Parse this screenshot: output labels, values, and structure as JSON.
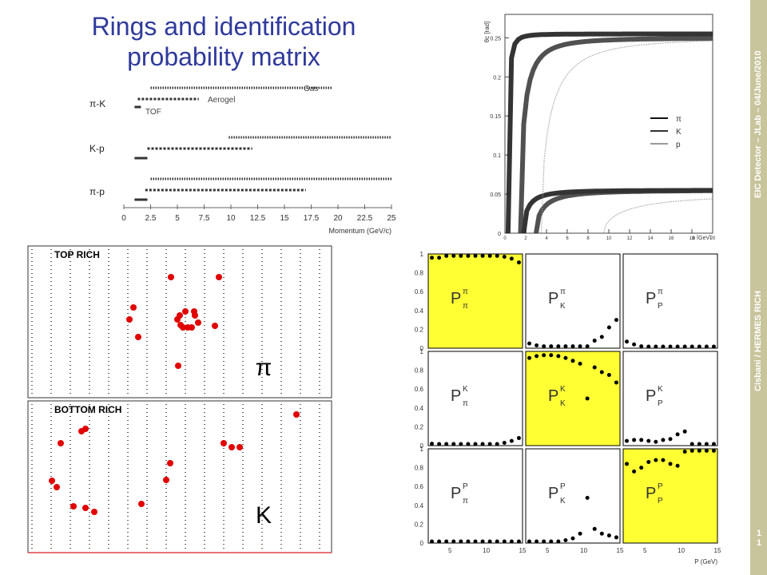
{
  "slide": {
    "title_line1": "Rings and identification",
    "title_line2": "probability matrix",
    "sidebar_top": "EIC Detector – JLab – 04/June/2010",
    "sidebar_bottom": "Cisbani / HERMES RICH",
    "page_number": "1\n1"
  },
  "chart_data": [
    {
      "type": "table",
      "name": "momentum-coverage",
      "xlabel": "Momentum (GeV/c)",
      "x_ticks": [
        "0",
        "2.5",
        "5",
        "7.5",
        "10",
        "12.5",
        "15",
        "17.5",
        "20",
        "22.5",
        "25"
      ],
      "xlim": [
        0,
        25
      ],
      "groups": [
        {
          "label": "π-K",
          "ranges": [
            {
              "name": "Gas",
              "from": 2.5,
              "to": 19.5,
              "style": "dotted"
            },
            {
              "name": "Aerogel",
              "from": 1.3,
              "to": 7.0,
              "style": "dashed"
            },
            {
              "name": "TOF",
              "from": 1.0,
              "to": 1.6,
              "style": "solid"
            }
          ]
        },
        {
          "label": "K-p",
          "ranges": [
            {
              "name": "Gas",
              "from": 9.8,
              "to": 25.0,
              "style": "dotted"
            },
            {
              "name": "Aerogel",
              "from": 2.2,
              "to": 12.0,
              "style": "dashed"
            },
            {
              "name": "TOF",
              "from": 1.0,
              "to": 2.2,
              "style": "solid"
            }
          ]
        },
        {
          "label": "π-p",
          "ranges": [
            {
              "name": "Gas",
              "from": 2.5,
              "to": 25.0,
              "style": "dotted"
            },
            {
              "name": "Aerogel",
              "from": 2.0,
              "to": 17.0,
              "style": "dashed"
            },
            {
              "name": "TOF",
              "from": 1.0,
              "to": 2.2,
              "style": "solid"
            }
          ]
        }
      ],
      "labels": {
        "gas": "Gas",
        "aerogel": "Aerogel",
        "tof": "TOF"
      }
    },
    {
      "type": "scatter",
      "name": "cherenkov-angle",
      "ylabel": "θc [rad]",
      "xlabel": "p [GeV]",
      "xlim": [
        0,
        20
      ],
      "ylim": [
        0,
        0.28
      ],
      "x_ticks": [
        "0",
        "2",
        "4",
        "6",
        "8",
        "10",
        "12",
        "14",
        "16",
        "18",
        "20"
      ],
      "y_ticks": [
        "0",
        "0.05",
        "0.1",
        "0.15",
        "0.2",
        "0.25"
      ],
      "series": [
        {
          "name": "π",
          "band": "gas",
          "threshold": 1.8,
          "saturation": 0.055
        },
        {
          "name": "π",
          "band": "aerogel",
          "threshold": 0.3,
          "saturation": 0.255
        },
        {
          "name": "K",
          "band": "gas",
          "threshold": 3.0,
          "saturation": 0.055
        },
        {
          "name": "K",
          "band": "aerogel",
          "threshold": 1.5,
          "saturation": 0.25
        },
        {
          "name": "p",
          "band": "gas",
          "threshold": 9.5,
          "saturation": 0.05
        },
        {
          "name": "p",
          "band": "aerogel",
          "threshold": 3.5,
          "saturation": 0.25
        }
      ],
      "legend": [
        "π",
        "K",
        "p"
      ],
      "legend_position": "right"
    },
    {
      "type": "scatter",
      "name": "rich-event-display",
      "panels": [
        {
          "label": "TOP RICH",
          "particle": "π",
          "hits": [
            [
              214,
              347
            ],
            [
              274,
              347
            ],
            [
              167,
              385
            ],
            [
              162,
              400
            ],
            [
              173,
              422
            ],
            [
              232,
              390
            ],
            [
              243,
              390
            ],
            [
              244,
              395
            ],
            [
              225,
              395
            ],
            [
              222,
              400
            ],
            [
              226,
              407
            ],
            [
              229,
              410
            ],
            [
              235,
              410
            ],
            [
              240,
              410
            ],
            [
              248,
              404
            ],
            [
              269,
              408
            ],
            [
              223,
              458
            ]
          ]
        },
        {
          "label": "BOTTOM RICH",
          "particle": "K",
          "hits": [
            [
              371,
              519
            ],
            [
              102,
              540
            ],
            [
              107,
              537
            ],
            [
              76,
              555
            ],
            [
              280,
              555
            ],
            [
              290,
              560
            ],
            [
              300,
              560
            ],
            [
              213,
              580
            ],
            [
              65,
              602
            ],
            [
              71,
              610
            ],
            [
              208,
              601
            ],
            [
              92,
              634
            ],
            [
              107,
              636
            ],
            [
              118,
              641
            ],
            [
              177,
              631
            ]
          ]
        }
      ]
    },
    {
      "type": "scatter",
      "name": "identification-probability-matrix",
      "xlabel": "P (GeV)",
      "x_ticks": [
        "5",
        "10",
        "15"
      ],
      "y_ticks": [
        "0",
        "0.2",
        "0.4",
        "0.6",
        "0.8",
        "1"
      ],
      "xlim": [
        2,
        15
      ],
      "ylim": [
        0,
        1
      ],
      "highlight_color": "#ffff33",
      "cells": [
        {
          "label": "Pππ",
          "sup": "π",
          "sub": "π",
          "highlight": true,
          "x": [
            2.5,
            3.5,
            4.5,
            5.5,
            6.5,
            7.5,
            8.5,
            9.5,
            10.5,
            11.5,
            12.5,
            13.5,
            14.5
          ],
          "y": [
            0.96,
            0.96,
            0.98,
            0.98,
            0.98,
            0.98,
            0.98,
            0.98,
            0.98,
            0.98,
            0.97,
            0.95,
            0.91
          ]
        },
        {
          "label": "PπK",
          "sup": "π",
          "sub": "K",
          "highlight": false,
          "x": [
            2.5,
            3.5,
            4.5,
            5.5,
            6.5,
            7.5,
            8.5,
            9.5,
            10.5,
            11.5,
            12.5,
            13.5,
            14.5
          ],
          "y": [
            0.05,
            0.03,
            0.02,
            0.02,
            0.02,
            0.02,
            0.02,
            0.02,
            0.02,
            0.08,
            0.12,
            0.22,
            0.3
          ]
        },
        {
          "label": "PπP",
          "sup": "π",
          "sub": "P",
          "highlight": false,
          "x": [
            2.5,
            3.5,
            4.5,
            5.5,
            6.5,
            7.5,
            8.5,
            9.5,
            10.5,
            11.5,
            12.5,
            13.5,
            14.5
          ],
          "y": [
            0.07,
            0.04,
            0.02,
            0.01,
            0.01,
            0.0,
            0.0,
            0.0,
            0.0,
            0.0,
            0.0,
            0.0,
            0.0
          ]
        },
        {
          "label": "PKπ",
          "sup": "K",
          "sub": "π",
          "highlight": false,
          "x": [
            2.5,
            3.5,
            4.5,
            5.5,
            6.5,
            7.5,
            8.5,
            9.5,
            10.5,
            11.5,
            12.5,
            13.5,
            14.5
          ],
          "y": [
            0.02,
            0.01,
            0.01,
            0.01,
            0.01,
            0.01,
            0.01,
            0.01,
            0.01,
            0.01,
            0.03,
            0.05,
            0.08
          ]
        },
        {
          "label": "PKK",
          "sup": "K",
          "sub": "K",
          "highlight": true,
          "x": [
            2.5,
            3.5,
            4.5,
            5.5,
            6.5,
            7.5,
            8.5,
            9.5,
            10.5,
            11.5,
            12.5,
            13.5,
            14.5
          ],
          "y": [
            0.93,
            0.95,
            0.96,
            0.96,
            0.95,
            0.93,
            0.9,
            0.87,
            0.5,
            0.83,
            0.78,
            0.75,
            0.67
          ]
        },
        {
          "label": "PKP",
          "sup": "K",
          "sub": "P",
          "highlight": false,
          "x": [
            2.5,
            3.5,
            4.5,
            5.5,
            6.5,
            7.5,
            8.5,
            9.5,
            10.5,
            11.5,
            12.5,
            13.5,
            14.5
          ],
          "y": [
            0.05,
            0.06,
            0.06,
            0.05,
            0.04,
            0.06,
            0.07,
            0.12,
            0.15,
            0.0,
            0.0,
            0.0,
            0.0
          ]
        },
        {
          "label": "PPπ",
          "sup": "P",
          "sub": "π",
          "highlight": false,
          "x": [
            2.5,
            3.5,
            4.5,
            5.5,
            6.5,
            7.5,
            8.5,
            9.5,
            10.5,
            11.5,
            12.5,
            13.5,
            14.5
          ],
          "y": [
            0.0,
            0.0,
            0.0,
            0.0,
            0.0,
            0.0,
            0.0,
            0.0,
            0.0,
            0.0,
            0.0,
            0.0,
            0.0
          ]
        },
        {
          "label": "PPK",
          "sup": "P",
          "sub": "K",
          "highlight": false,
          "x": [
            2.5,
            3.5,
            4.5,
            5.5,
            6.5,
            7.5,
            8.5,
            9.5,
            10.5,
            11.5,
            12.5,
            13.5,
            14.5
          ],
          "y": [
            0.0,
            0.0,
            0.0,
            0.0,
            0.01,
            0.03,
            0.05,
            0.1,
            0.48,
            0.15,
            0.1,
            0.08,
            0.06
          ]
        },
        {
          "label": "PPP",
          "sup": "P",
          "sub": "P",
          "highlight": true,
          "x": [
            2.5,
            3.5,
            4.5,
            5.5,
            6.5,
            7.5,
            8.5,
            9.5,
            10.5,
            11.5,
            12.5,
            13.5,
            14.5
          ],
          "y": [
            0.84,
            0.76,
            0.8,
            0.86,
            0.88,
            0.88,
            0.84,
            0.82,
            0.97,
            0.98,
            0.98,
            0.98,
            0.98
          ]
        }
      ]
    }
  ]
}
